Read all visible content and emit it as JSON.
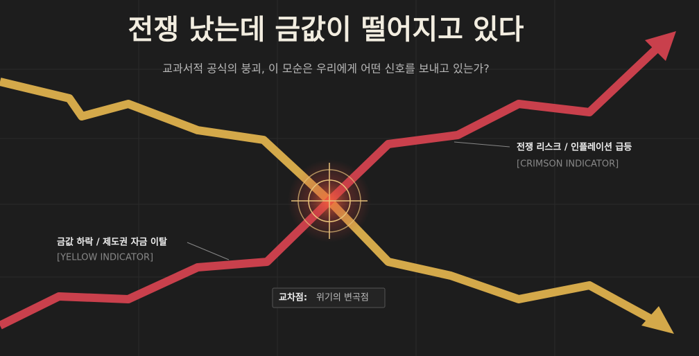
{
  "header": {
    "title": "전쟁 났는데 금값이 떨어지고 있다",
    "subtitle": "교과서적 공식의 붕괴, 이 모순은 우리에게 어떤 신호를 보내고 있는가?"
  },
  "labels": {
    "crimson": {
      "title": "전쟁 리스크 / 인플레이션 급등",
      "tag": "[CRIMSON INDICATOR]"
    },
    "yellow": {
      "title": "금값 하락 / 제도권 자금 이탈",
      "tag": "[YELLOW INDICATOR]"
    },
    "cross": {
      "title": "교차점:",
      "text": "위기의 변곡점"
    }
  }
}
